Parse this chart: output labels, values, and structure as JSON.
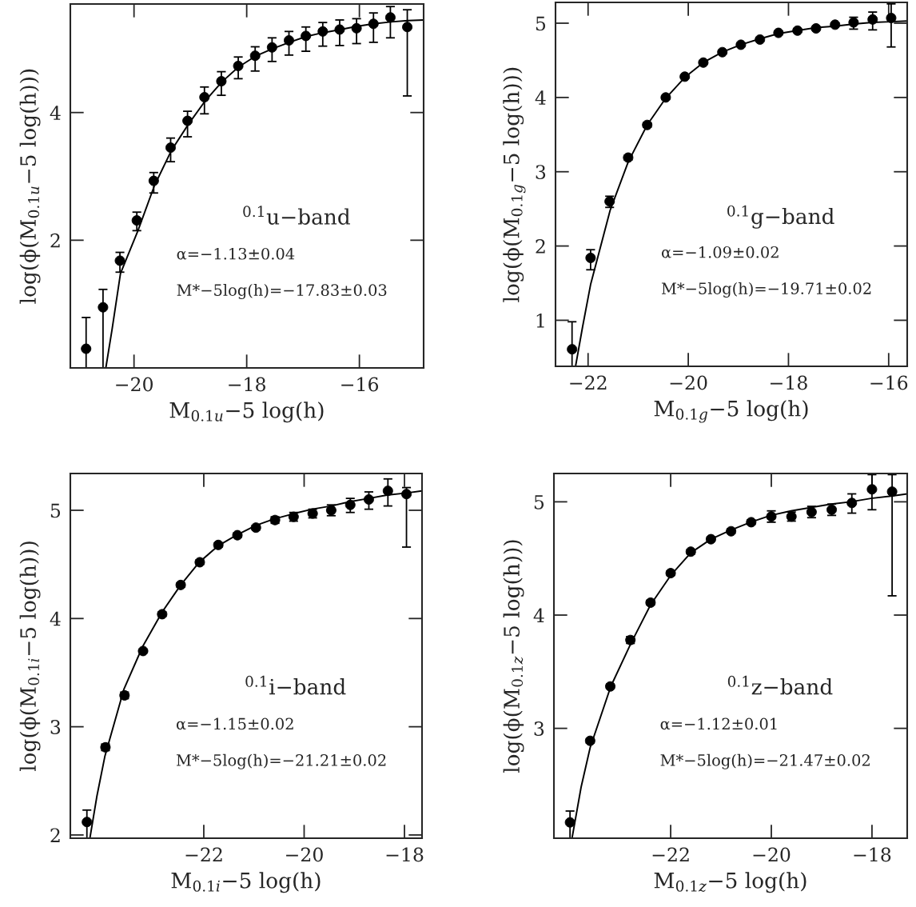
{
  "chart_data": [
    {
      "type": "scatter",
      "xlabel": "M$_{0.1u}$−5 log(h)",
      "ylabel": "log(ϕ(M$_{0.1u}$−5 log(h)))",
      "annotations": [
        "$^{0.1}$u−band",
        "α=−1.13±0.04",
        "M*−5log(h)=−17.83±0.03"
      ],
      "xlim": [
        -21.13,
        -14.86
      ],
      "ylim": [
        0,
        5.7
      ],
      "xticks": [
        {
          "value": -20,
          "label": "−20"
        },
        {
          "value": -18,
          "label": "−18"
        },
        {
          "value": -16,
          "label": "−16"
        }
      ],
      "yticks": [
        2,
        4
      ],
      "series": [
        {
          "marker": "circle",
          "color": "#000000",
          "x": [
            -20.85,
            -20.55,
            -20.25,
            -19.95,
            -19.65,
            -19.35,
            -19.05,
            -18.75,
            -18.45,
            -18.15,
            -17.85,
            -17.55,
            -17.25,
            -16.95,
            -16.65,
            -16.35,
            -16.05,
            -15.75,
            -15.45,
            -15.15
          ],
          "values": [
            0.3,
            0.95,
            1.68,
            2.31,
            2.93,
            3.45,
            3.87,
            4.24,
            4.49,
            4.73,
            4.89,
            5.02,
            5.13,
            5.2,
            5.27,
            5.3,
            5.32,
            5.39,
            5.49,
            5.34
          ],
          "errors": [
            [
              0.0,
              0.79
            ],
            [
              0.0,
              1.23
            ],
            [
              1.5,
              1.81
            ],
            [
              2.15,
              2.44
            ],
            [
              2.74,
              3.06
            ],
            [
              3.23,
              3.6
            ],
            [
              3.62,
              4.02
            ],
            [
              3.98,
              4.4
            ],
            [
              4.27,
              4.64
            ],
            [
              4.53,
              4.87
            ],
            [
              4.65,
              5.03
            ],
            [
              4.8,
              5.17
            ],
            [
              4.9,
              5.27
            ],
            [
              4.96,
              5.34
            ],
            [
              5.04,
              5.41
            ],
            [
              5.05,
              5.45
            ],
            [
              5.08,
              5.47
            ],
            [
              5.1,
              5.56
            ],
            [
              5.17,
              5.66
            ],
            [
              4.26,
              5.61
            ]
          ]
        },
        {
          "type": "line",
          "color": "#000000",
          "x": [
            -20.5,
            -20.39,
            -20.24,
            -19.93,
            -19.64,
            -19.34,
            -19.04,
            -18.73,
            -18.44,
            -18.15,
            -17.85,
            -17.54,
            -17.24,
            -16.95,
            -16.65,
            -16.34,
            -16.05,
            -15.75,
            -15.44,
            -15.14,
            -14.86
          ],
          "values": [
            0.0,
            0.6,
            1.48,
            2.15,
            2.85,
            3.4,
            3.81,
            4.19,
            4.48,
            4.71,
            4.88,
            5.0,
            5.1,
            5.19,
            5.25,
            5.3,
            5.35,
            5.39,
            5.42,
            5.44,
            5.45
          ]
        }
      ]
    },
    {
      "type": "scatter",
      "xlabel": "M$_{0.1g}$−5 log(h)",
      "ylabel": "log(ϕ(M$_{0.1g}$−5 log(h)))",
      "annotations": [
        "$^{0.1}$g−band",
        "α=−1.09±0.02",
        "M*−5log(h)=−19.71±0.02"
      ],
      "xlim": [
        -22.65,
        -15.63
      ],
      "ylim": [
        0.38,
        5.28
      ],
      "xticks": [
        {
          "value": -22,
          "label": "−22"
        },
        {
          "value": -20,
          "label": "−20"
        },
        {
          "value": -18,
          "label": "−18"
        },
        {
          "value": -16,
          "label": "−16"
        }
      ],
      "yticks": [
        1,
        2,
        3,
        4,
        5
      ],
      "series": [
        {
          "marker": "circle",
          "color": "#000000",
          "x": [
            -22.32,
            -21.95,
            -21.57,
            -21.2,
            -20.82,
            -20.45,
            -20.07,
            -19.7,
            -19.32,
            -18.95,
            -18.57,
            -18.2,
            -17.82,
            -17.45,
            -17.07,
            -16.7,
            -16.32,
            -15.95
          ],
          "values": [
            0.61,
            1.84,
            2.6,
            3.19,
            3.63,
            4.0,
            4.28,
            4.47,
            4.61,
            4.71,
            4.78,
            4.87,
            4.9,
            4.93,
            4.98,
            5.01,
            5.05,
            5.07
          ],
          "errors": [
            [
              0.38,
              0.98
            ],
            [
              1.68,
              1.95
            ],
            [
              2.52,
              2.67
            ],
            0.03,
            0.03,
            0.02,
            0.02,
            0.02,
            0.02,
            0.02,
            0.02,
            0.02,
            0.02,
            0.02,
            0.02,
            [
              4.92,
              5.08
            ],
            [
              4.91,
              5.15
            ],
            [
              4.68,
              5.26
            ]
          ]
        },
        {
          "type": "line",
          "color": "#000000",
          "x": [
            -22.25,
            -22.11,
            -21.95,
            -21.56,
            -21.2,
            -20.82,
            -20.45,
            -20.07,
            -19.7,
            -19.32,
            -18.95,
            -18.57,
            -18.2,
            -17.83,
            -17.45,
            -17.07,
            -16.69,
            -16.32,
            -15.95,
            -15.63
          ],
          "values": [
            0.38,
            0.91,
            1.48,
            2.48,
            3.13,
            3.63,
            3.99,
            4.27,
            4.47,
            4.61,
            4.71,
            4.79,
            4.86,
            4.9,
            4.94,
            4.96,
            4.99,
            5.01,
            5.02,
            5.03
          ]
        }
      ]
    },
    {
      "type": "scatter",
      "xlabel": "M$_{0.1i}$−5 log(h)",
      "ylabel": "log(ϕ(M$_{0.1i}$−5 log(h)))",
      "annotations": [
        "$^{0.1}$i−band",
        "α=−1.15±0.02",
        "M*−5log(h)=−21.21±0.02"
      ],
      "xlim": [
        -24.66,
        -17.65
      ],
      "ylim": [
        1.97,
        5.34
      ],
      "xticks": [
        {
          "value": -22,
          "label": "−22"
        },
        {
          "value": -20,
          "label": "−20"
        },
        {
          "value": -18,
          "label": "−18"
        }
      ],
      "yticks": [
        2,
        3,
        4,
        5
      ],
      "series": [
        {
          "marker": "circle",
          "color": "#000000",
          "x": [
            -24.33,
            -23.96,
            -23.58,
            -23.21,
            -22.83,
            -22.46,
            -22.08,
            -21.71,
            -21.33,
            -20.96,
            -20.58,
            -20.21,
            -19.83,
            -19.46,
            -19.08,
            -18.71,
            -18.33,
            -17.96
          ],
          "values": [
            2.12,
            2.81,
            3.29,
            3.7,
            4.04,
            4.31,
            4.52,
            4.68,
            4.77,
            4.84,
            4.91,
            4.94,
            4.97,
            5.0,
            5.05,
            5.1,
            5.18,
            5.15
          ],
          "errors": [
            [
              1.97,
              2.23
            ],
            0.03,
            0.03,
            0.01,
            0.02,
            0.02,
            0.02,
            0.02,
            0.02,
            0.02,
            0.03,
            0.04,
            0.04,
            0.05,
            [
              4.98,
              5.11
            ],
            [
              5.01,
              5.17
            ],
            [
              5.04,
              5.29
            ],
            [
              4.66,
              5.21
            ]
          ]
        },
        {
          "type": "line",
          "color": "#000000",
          "x": [
            -24.27,
            -24.13,
            -23.97,
            -23.59,
            -23.22,
            -22.83,
            -22.46,
            -22.09,
            -21.72,
            -21.35,
            -20.96,
            -20.6,
            -20.2,
            -19.84,
            -19.46,
            -19.09,
            -18.71,
            -18.35,
            -17.96,
            -17.65
          ],
          "values": [
            1.97,
            2.36,
            2.73,
            3.35,
            3.74,
            4.06,
            4.31,
            4.52,
            4.67,
            4.77,
            4.86,
            4.92,
            4.97,
            5.01,
            5.04,
            5.08,
            5.11,
            5.14,
            5.16,
            5.18
          ]
        }
      ]
    },
    {
      "type": "scatter",
      "xlabel": "M$_{0.1z}$−5 log(h)",
      "ylabel": "log(ϕ(M$_{0.1z}$−5 log(h)))",
      "annotations": [
        "$^{0.1}$z−band",
        "α=−1.12±0.01",
        "M*−5log(h)=−21.47±0.02"
      ],
      "xlim": [
        -24.32,
        -17.3
      ],
      "ylim": [
        2.03,
        5.25
      ],
      "xticks": [
        {
          "value": -22,
          "label": "−22"
        },
        {
          "value": -20,
          "label": "−20"
        },
        {
          "value": -18,
          "label": "−18"
        }
      ],
      "yticks": [
        3,
        4,
        5
      ],
      "series": [
        {
          "marker": "circle",
          "color": "#000000",
          "x": [
            -24.0,
            -23.6,
            -23.2,
            -22.8,
            -22.4,
            -22.0,
            -21.6,
            -21.2,
            -20.8,
            -20.4,
            -20.0,
            -19.6,
            -19.2,
            -18.8,
            -18.4,
            -18.0,
            -17.6
          ],
          "values": [
            2.17,
            2.89,
            3.37,
            3.78,
            4.11,
            4.37,
            4.56,
            4.67,
            4.74,
            4.82,
            4.87,
            4.87,
            4.91,
            4.93,
            4.99,
            5.11,
            5.09
          ],
          "errors": [
            [
              2.03,
              2.27
            ],
            0.02,
            0.02,
            0.03,
            0.02,
            0.02,
            0.02,
            0.02,
            0.02,
            0.02,
            0.05,
            0.04,
            0.05,
            0.05,
            [
              4.9,
              5.07
            ],
            [
              4.93,
              5.24
            ],
            [
              4.17,
              5.24
            ]
          ]
        },
        {
          "type": "line",
          "color": "#000000",
          "x": [
            -23.96,
            -23.78,
            -23.6,
            -23.19,
            -22.79,
            -22.4,
            -22.0,
            -21.6,
            -21.2,
            -20.81,
            -20.41,
            -20.01,
            -19.61,
            -19.21,
            -18.81,
            -18.42,
            -18.02,
            -17.62,
            -17.3
          ],
          "values": [
            2.03,
            2.48,
            2.83,
            3.37,
            3.75,
            4.09,
            4.35,
            4.55,
            4.67,
            4.75,
            4.82,
            4.88,
            4.92,
            4.95,
            4.98,
            5.0,
            5.03,
            5.05,
            5.07
          ]
        }
      ]
    }
  ]
}
